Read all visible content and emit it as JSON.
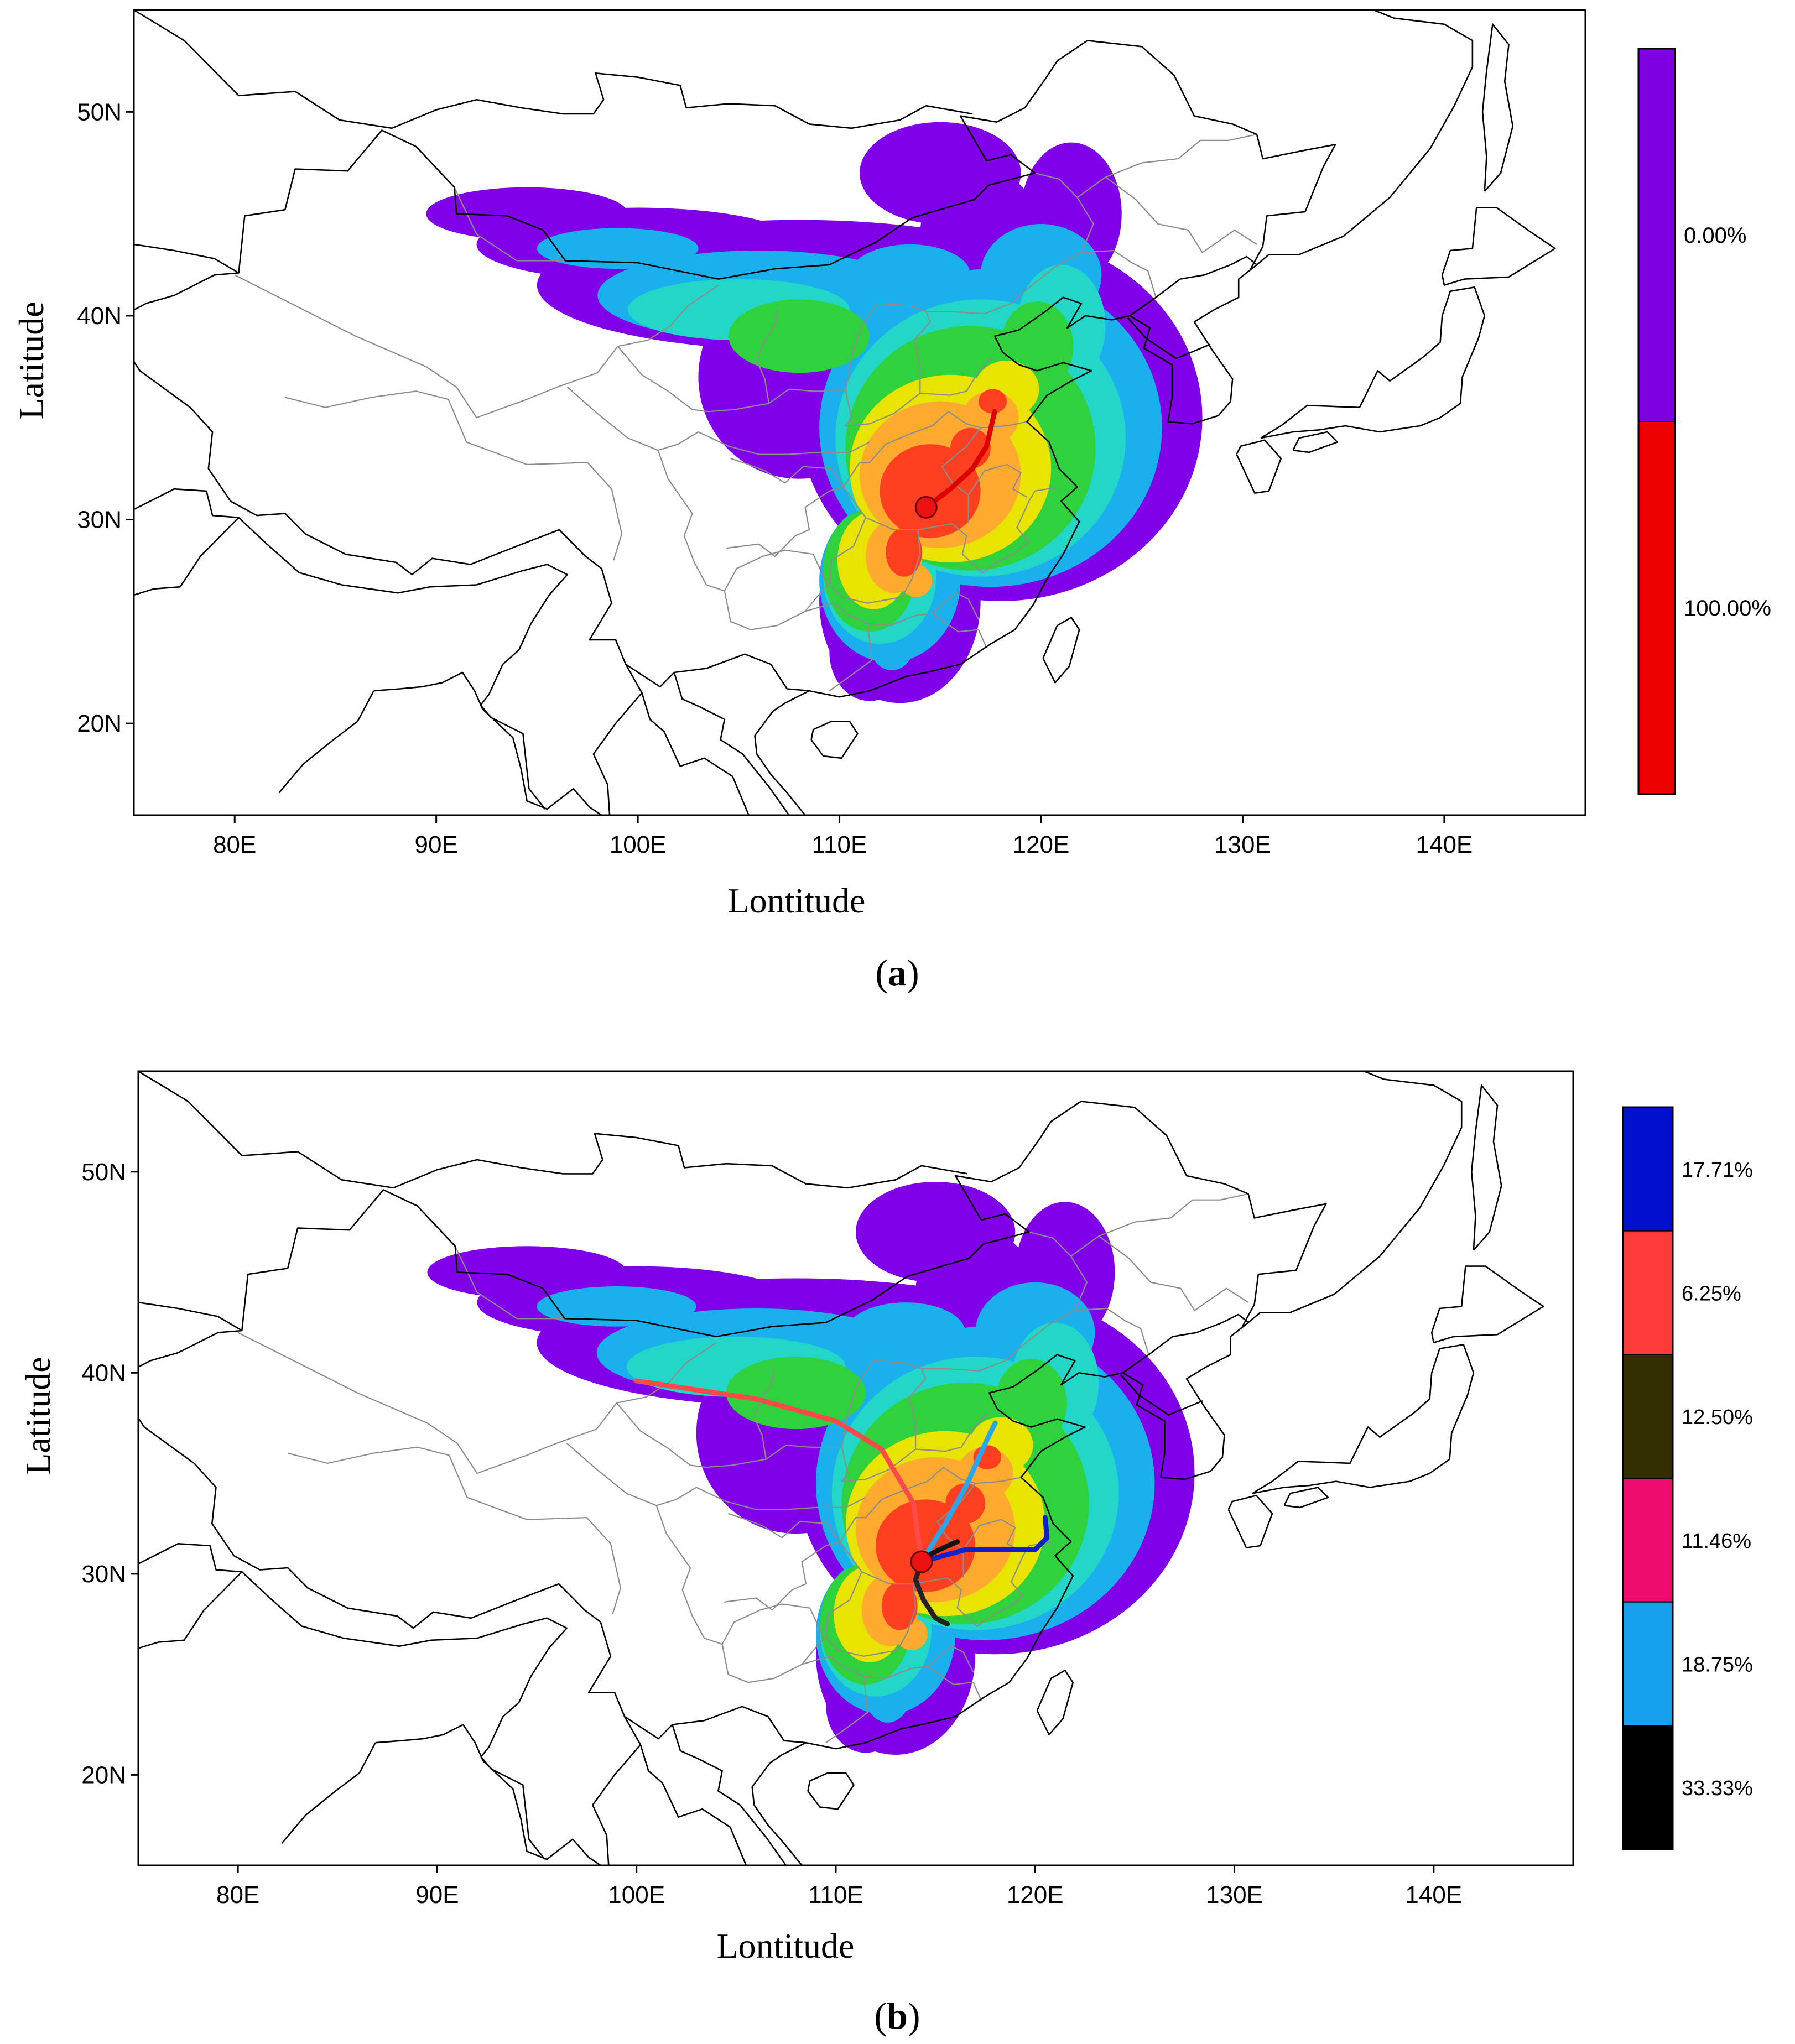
{
  "figure": {
    "panels": [
      {
        "id": "a",
        "caption_letter": "a",
        "xlabel": "Lontitude",
        "ylabel": "Latitude",
        "x_ticks": [
          {
            "value": 80,
            "label": "80E"
          },
          {
            "value": 90,
            "label": "90E"
          },
          {
            "value": 100,
            "label": "100E"
          },
          {
            "value": 110,
            "label": "110E"
          },
          {
            "value": 120,
            "label": "120E"
          },
          {
            "value": 130,
            "label": "130E"
          },
          {
            "value": 140,
            "label": "140E"
          }
        ],
        "y_ticks": [
          {
            "value": 20,
            "label": "20N"
          },
          {
            "value": 30,
            "label": "30N"
          },
          {
            "value": 40,
            "label": "40N"
          },
          {
            "value": 50,
            "label": "50N"
          }
        ],
        "lon_range": [
          75,
          147
        ],
        "lat_range": [
          15.5,
          55
        ],
        "receptor": {
          "lon": 114.3,
          "lat": 30.6
        },
        "trajectories": [
          {
            "color": "#dd0000",
            "points": [
              [
                114.3,
                30.6
              ],
              [
                115.5,
                31.5
              ],
              [
                116.6,
                32.5
              ],
              [
                117.3,
                33.6
              ],
              [
                117.7,
                35.3
              ]
            ]
          }
        ],
        "legend": [
          {
            "color": "#7f00e0",
            "label": "0.00%"
          },
          {
            "color": "#ee0000",
            "label": "100.00%"
          }
        ]
      },
      {
        "id": "b",
        "caption_letter": "b",
        "xlabel": "Lontitude",
        "ylabel": "Latitude",
        "x_ticks": [
          {
            "value": 80,
            "label": "80E"
          },
          {
            "value": 90,
            "label": "90E"
          },
          {
            "value": 100,
            "label": "100E"
          },
          {
            "value": 110,
            "label": "110E"
          },
          {
            "value": 120,
            "label": "120E"
          },
          {
            "value": 130,
            "label": "130E"
          },
          {
            "value": 140,
            "label": "140E"
          }
        ],
        "y_ticks": [
          {
            "value": 20,
            "label": "20N"
          },
          {
            "value": 30,
            "label": "30N"
          },
          {
            "value": 40,
            "label": "40N"
          },
          {
            "value": 50,
            "label": "50N"
          }
        ],
        "lon_range": [
          75,
          147
        ],
        "lat_range": [
          15.5,
          55
        ],
        "receptor": {
          "lon": 114.3,
          "lat": 30.6
        },
        "trajectories": [
          {
            "color": "#ff4a4a",
            "points": [
              [
                114.3,
                30.6
              ],
              [
                113.9,
                33.5
              ],
              [
                112.3,
                36.2
              ],
              [
                110.0,
                37.6
              ],
              [
                106.0,
                38.7
              ],
              [
                100.0,
                39.6
              ]
            ]
          },
          {
            "color": "#29a6ee",
            "points": [
              [
                114.3,
                30.6
              ],
              [
                115.5,
                32.5
              ],
              [
                116.6,
                34.5
              ],
              [
                117.6,
                36.7
              ],
              [
                118.0,
                37.5
              ]
            ]
          },
          {
            "color": "#1020cc",
            "points": [
              [
                114.3,
                30.6
              ],
              [
                116.5,
                31.2
              ],
              [
                118.5,
                31.2
              ],
              [
                120.0,
                31.2
              ],
              [
                120.6,
                31.8
              ],
              [
                120.5,
                32.8
              ]
            ]
          },
          {
            "color": "#222222",
            "points": [
              [
                114.3,
                30.6
              ],
              [
                114.0,
                29.7
              ],
              [
                114.4,
                28.7
              ],
              [
                115.0,
                27.8
              ],
              [
                115.6,
                27.5
              ]
            ]
          },
          {
            "color": "#111111",
            "points": [
              [
                114.3,
                30.6
              ],
              [
                114.8,
                31.0
              ],
              [
                115.4,
                31.3
              ],
              [
                116.1,
                31.6
              ]
            ]
          }
        ],
        "legend": [
          {
            "color": "#0010cc",
            "label": "17.71%"
          },
          {
            "color": "#ff3c3c",
            "label": "6.25%"
          },
          {
            "color": "#332e00",
            "label": "12.50%"
          },
          {
            "color": "#ee0c6e",
            "label": "11.46%"
          },
          {
            "color": "#16a0ee",
            "label": "18.75%"
          },
          {
            "color": "#000000",
            "label": "33.33%"
          }
        ]
      }
    ],
    "density_colors": {
      "outer": "#8000e8",
      "blue": "#1ab0ee",
      "cyan": "#22d6c8",
      "green": "#2fd23c",
      "yellow": "#e8e400",
      "orange": "#ffab30",
      "red": "#ff4020"
    }
  }
}
